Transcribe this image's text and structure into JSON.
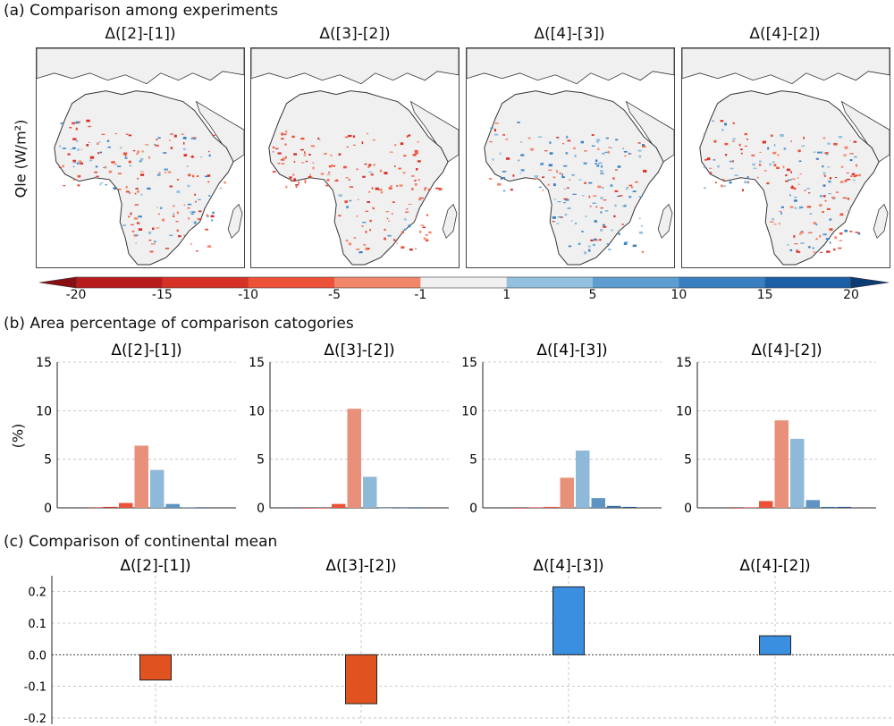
{
  "section_a": {
    "title": "(a) Comparison among experiments",
    "ylabel": "Qle (W/m²)",
    "panels": [
      {
        "title": "Δ([2]-[1])"
      },
      {
        "title": "Δ([3]-[2])"
      },
      {
        "title": "Δ([4]-[3])"
      },
      {
        "title": "Δ([4]-[2])"
      }
    ],
    "colorbar": {
      "ticks": [
        "-20",
        "-15",
        "-10",
        "-5",
        "-1",
        "1",
        "5",
        "10",
        "15",
        "20"
      ],
      "colors": [
        "#b81b1b",
        "#d63127",
        "#ec5238",
        "#f2866a",
        "#f0f0f0",
        "#92c0de",
        "#5d9dcf",
        "#3a7fbf",
        "#1d5fa6"
      ]
    }
  },
  "chart_data": [
    {
      "type": "bar",
      "section": "(b) Area percentage of comparison catogories",
      "ylabel": "(%)",
      "ylim": [
        0,
        15
      ],
      "yticks": [
        "0",
        "5",
        "10",
        "15"
      ],
      "grid": true,
      "bin_colors": [
        "#b81b1b",
        "#d63127",
        "#ec5238",
        "#e8907a",
        "#8fb9d8",
        "#5f94c2",
        "#3d6fa3",
        "#24508a"
      ],
      "panels": [
        {
          "title": "Δ([2]-[1])",
          "values": [
            0.05,
            0.1,
            0.5,
            6.4,
            3.9,
            0.4,
            0.05,
            0.0
          ]
        },
        {
          "title": "Δ([3]-[2])",
          "values": [
            0.0,
            0.0,
            0.4,
            10.2,
            3.2,
            0.0,
            0.0,
            0.0
          ]
        },
        {
          "title": "Δ([4]-[3])",
          "values": [
            0.0,
            0.05,
            0.1,
            3.1,
            5.9,
            1.0,
            0.2,
            0.1
          ]
        },
        {
          "title": "Δ([4]-[2])",
          "values": [
            0.0,
            0.05,
            0.7,
            9.0,
            7.1,
            0.8,
            0.1,
            0.1
          ]
        }
      ]
    },
    {
      "type": "bar",
      "section": "(c) Comparison of continental mean",
      "categories": [
        "Δ([2]-[1])",
        "Δ([3]-[2])",
        "Δ([4]-[3])",
        "Δ([4]-[2])"
      ],
      "values": [
        -0.08,
        -0.155,
        0.215,
        0.06
      ],
      "ylim": [
        -0.22,
        0.25
      ],
      "yticks": [
        "0.2",
        "0.1",
        "0.0",
        "-0.1",
        "-0.2"
      ],
      "colors": {
        "negative": "#e0521f",
        "positive": "#3b8fe0"
      },
      "grid": true
    }
  ]
}
